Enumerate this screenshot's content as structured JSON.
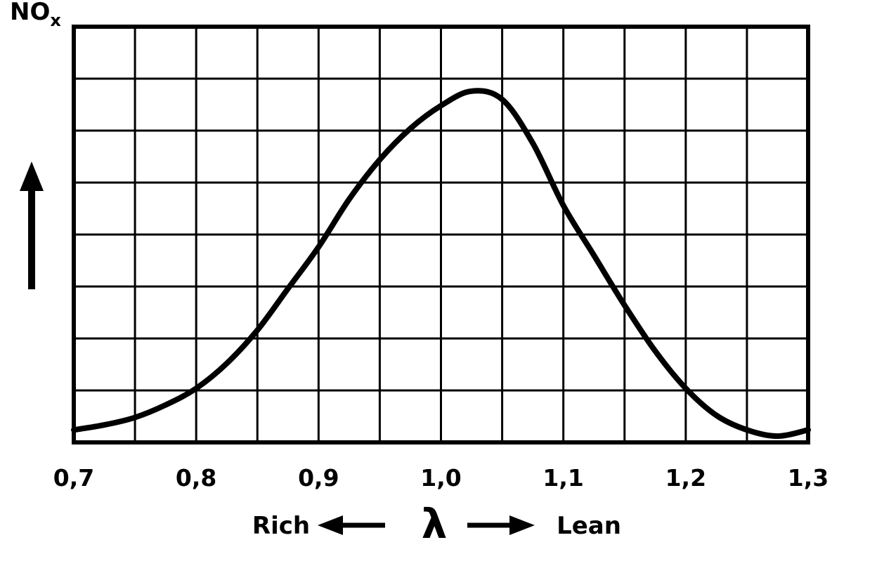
{
  "colors": {
    "ink": "#000000",
    "background": "#ffffff"
  },
  "labels": {
    "y_main": "NO",
    "y_sub": "x"
  },
  "chart_data": {
    "type": "line",
    "xlabel": "λ",
    "ylabel": "NOx",
    "x_range": [
      0.7,
      1.3
    ],
    "y_range": [
      0,
      1
    ],
    "grid": {
      "cols": 12,
      "rows": 8,
      "visible": true
    },
    "x_ticks": [
      "0,7",
      "0,8",
      "0,9",
      "1,0",
      "1,1",
      "1,2",
      "1,3"
    ],
    "annotations": {
      "rich": "Rich",
      "lambda": "λ",
      "lean": "Lean"
    },
    "series": [
      {
        "name": "NOx",
        "x": [
          0.7,
          0.725,
          0.75,
          0.775,
          0.8,
          0.825,
          0.85,
          0.875,
          0.9,
          0.925,
          0.95,
          0.975,
          1.0,
          1.025,
          1.05,
          1.075,
          1.1,
          1.125,
          1.15,
          1.175,
          1.2,
          1.225,
          1.25,
          1.275,
          1.3
        ],
        "y": [
          0.03,
          0.042,
          0.06,
          0.09,
          0.13,
          0.19,
          0.27,
          0.37,
          0.47,
          0.585,
          0.68,
          0.755,
          0.81,
          0.845,
          0.825,
          0.72,
          0.57,
          0.45,
          0.33,
          0.22,
          0.13,
          0.065,
          0.03,
          0.015,
          0.03
        ]
      }
    ]
  }
}
